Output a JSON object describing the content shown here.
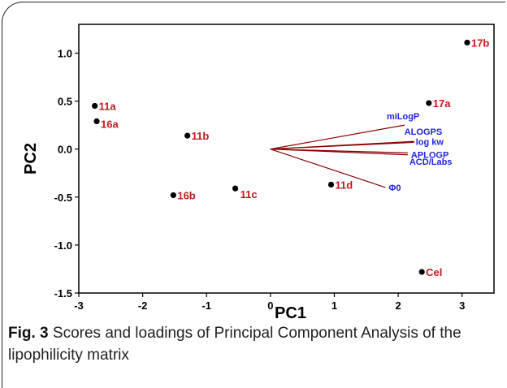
{
  "caption": {
    "label": "Fig. 3",
    "text": "Scores and loadings of Principal Component Analysis of the lipophilicity matrix"
  },
  "chart_data": {
    "type": "scatter",
    "xlabel": "PC1",
    "ylabel": "PC2",
    "xlim": [
      -3,
      3.5
    ],
    "ylim": [
      -1.5,
      1.3
    ],
    "xticks": [
      -3,
      -2,
      -1,
      0,
      1,
      2,
      3
    ],
    "xtick_labels": [
      "-3",
      "-2",
      "-1",
      "0",
      "1",
      "2",
      "3"
    ],
    "yticks": [
      -1.5,
      -1.0,
      -0.5,
      0.0,
      0.5,
      1.0
    ],
    "ytick_labels": [
      "-1.5",
      "-1.0",
      "-0.5",
      "0.0",
      "0.5",
      "1.0"
    ],
    "grid": false,
    "scores": [
      {
        "label": "11a",
        "x": -2.75,
        "y": 0.45
      },
      {
        "label": "16a",
        "x": -2.72,
        "y": 0.29
      },
      {
        "label": "11b",
        "x": -1.3,
        "y": 0.14
      },
      {
        "label": "16b",
        "x": -1.52,
        "y": -0.48
      },
      {
        "label": "11c",
        "x": -0.55,
        "y": -0.41
      },
      {
        "label": "11d",
        "x": 0.95,
        "y": -0.37
      },
      {
        "label": "17a",
        "x": 2.48,
        "y": 0.48
      },
      {
        "label": "17b",
        "x": 3.08,
        "y": 1.11
      },
      {
        "label": "Cel",
        "x": 2.37,
        "y": -1.28
      }
    ],
    "loadings": [
      {
        "label": "miLogP",
        "x": 2.1,
        "y": 0.25
      },
      {
        "label": "ALOGPS",
        "x": 2.25,
        "y": 0.08
      },
      {
        "label": "log kw",
        "x": 2.25,
        "y": 0.07
      },
      {
        "label": "APLOGP",
        "x": 2.15,
        "y": -0.04
      },
      {
        "label": "ACD/Labs",
        "x": 2.15,
        "y": -0.06
      },
      {
        "label": "Φ0",
        "x": 1.8,
        "y": -0.4
      }
    ],
    "colors": {
      "score_marker": "#000000",
      "score_label": "#c0191d",
      "loading_line": "#8b0000",
      "loading_label": "#2222dd",
      "axis": "#000000"
    }
  }
}
